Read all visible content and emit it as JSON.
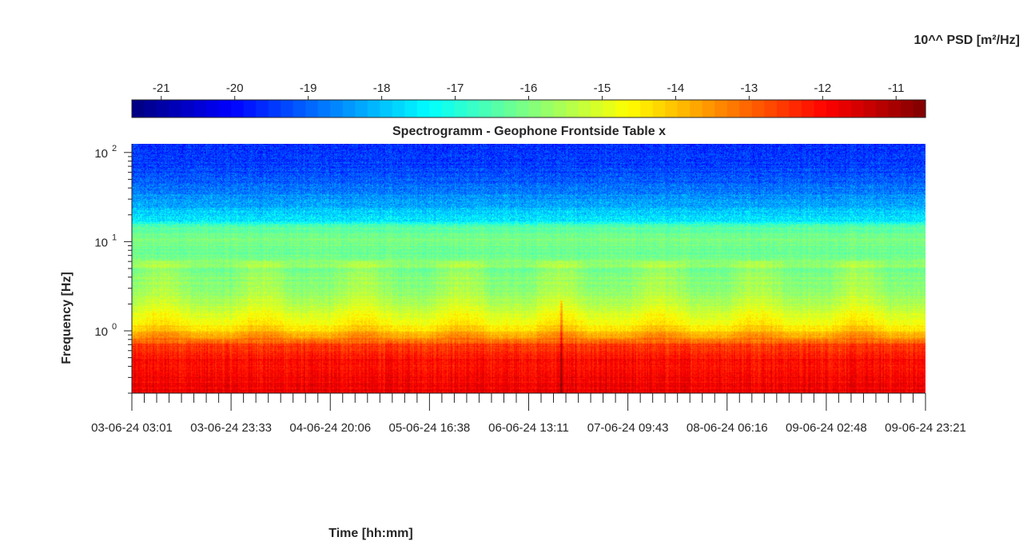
{
  "chart_data": {
    "type": "heatmap",
    "title": "Spectrogramm - Geophone Frontside Table x",
    "xlabel": "Time [hh:mm]",
    "ylabel": "Frequency [Hz]",
    "y_scale": "log",
    "ylim": [
      0.2,
      125
    ],
    "y_ticks": [
      1,
      10,
      100
    ],
    "y_tick_labels": {
      "base": "10",
      "exponents": [
        "0",
        "1",
        "2"
      ]
    },
    "x_tick_labels": [
      "03-06-24  03:01",
      "03-06-24  23:33",
      "04-06-24  20:06",
      "05-06-24  16:38",
      "06-06-24  13:11",
      "07-06-24  09:43",
      "08-06-24  06:16",
      "09-06-24  02:48",
      "09-06-24  23:21"
    ],
    "colorbar": {
      "label": "10^^ PSD [m²/Hz]",
      "ticks": [
        -21,
        -20,
        -19,
        -18,
        -17,
        -16,
        -15,
        -14,
        -13,
        -12,
        -11
      ],
      "range": [
        -21.4,
        -10.6
      ],
      "colormap": "jet"
    },
    "psd_profile": {
      "description_free": true,
      "frequencies_hz": [
        0.2,
        0.5,
        0.7,
        0.85,
        1.0,
        1.3,
        2.0,
        3.0,
        5.0,
        5.5,
        8.0,
        10.0,
        12.0,
        15.0,
        17.0,
        25.0,
        40.0,
        60.0,
        100.0,
        125.0
      ],
      "log10_psd": [
        -11.8,
        -12.1,
        -12.6,
        -13.6,
        -14.3,
        -14.9,
        -15.5,
        -15.9,
        -16.1,
        -15.8,
        -16.3,
        -16.0,
        -16.2,
        -16.5,
        -17.5,
        -18.2,
        -18.8,
        -19.3,
        -19.5,
        -19.6
      ]
    },
    "events": [
      {
        "x_label_index": 4.33,
        "note": ""
      }
    ]
  }
}
